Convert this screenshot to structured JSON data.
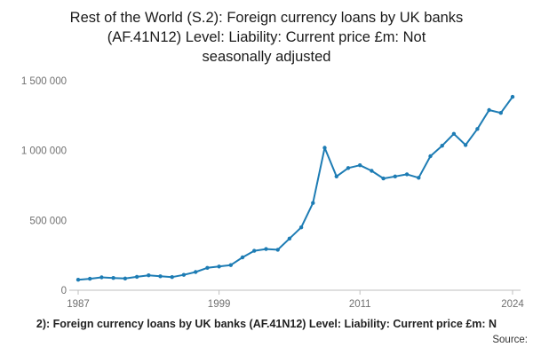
{
  "title_lines": [
    "Rest of the World (S.2): Foreign currency loans by UK banks",
    "(AF.41N12) Level: Liability: Current price £m: Not",
    "seasonally adjusted"
  ],
  "footer": {
    "caption": "2): Foreign currency loans by UK banks (AF.41N12) Level: Liability: Current price £m: N",
    "source_label": "Source:"
  },
  "colors": {
    "line": "#1d7cb4",
    "marker": "#1d7cb4",
    "axis_text": "#707070",
    "axis_line": "#bfbfbf",
    "title_text": "#1a1a1a"
  },
  "chart_data": {
    "type": "line",
    "title": "Rest of the World (S.2): Foreign currency loans by UK banks (AF.41N12) Level: Liability: Current price £m: Not seasonally adjusted",
    "xlabel": "",
    "ylabel": "",
    "x": [
      1987,
      1988,
      1989,
      1990,
      1991,
      1992,
      1993,
      1994,
      1995,
      1996,
      1997,
      1998,
      1999,
      2000,
      2001,
      2002,
      2003,
      2004,
      2005,
      2006,
      2007,
      2008,
      2009,
      2010,
      2011,
      2012,
      2013,
      2014,
      2015,
      2016,
      2017,
      2018,
      2019,
      2020,
      2021,
      2022,
      2023,
      2024
    ],
    "values": [
      75000,
      82000,
      92000,
      88000,
      84000,
      96000,
      107000,
      100000,
      94000,
      110000,
      130000,
      160000,
      170000,
      180000,
      235000,
      282000,
      295000,
      290000,
      370000,
      450000,
      625000,
      1020000,
      815000,
      875000,
      895000,
      855000,
      800000,
      815000,
      830000,
      805000,
      960000,
      1035000,
      1120000,
      1040000,
      1155000,
      1290000,
      1270000,
      1385000
    ],
    "xlim": [
      1987,
      2024
    ],
    "ylim": [
      0,
      1500000
    ],
    "x_ticks": [
      1987,
      1999,
      2011,
      2024
    ],
    "y_ticks": [
      0,
      500000,
      1000000,
      1500000
    ],
    "y_tick_labels": [
      "0",
      "500 000",
      "1 000 000",
      "1 500 000"
    ],
    "grid": false,
    "legend": "none",
    "marker": "circle"
  }
}
